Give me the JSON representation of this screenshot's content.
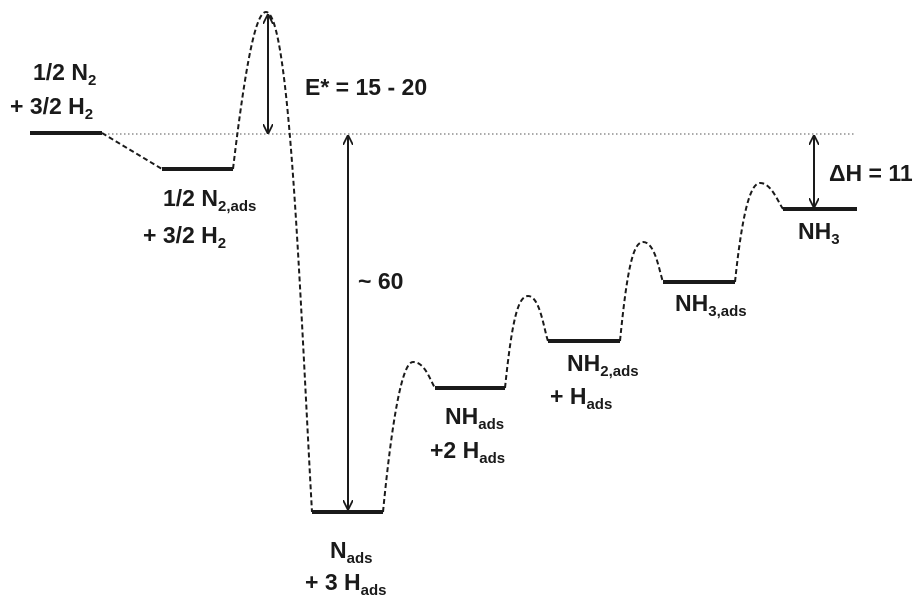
{
  "labels": {
    "reactants": {
      "l1_main": "1/2 N",
      "l1_sub": "2",
      "l2_main": "+ 3/2 H",
      "l2_sub": "2"
    },
    "n2_ads": {
      "l1_main": "1/2 N",
      "l1_sub": "2,ads",
      "l2_main": "+ 3/2 H",
      "l2_sub": "2"
    },
    "n_ads": {
      "l1_main": "N",
      "l1_sub": "ads",
      "l2_main": "+ 3 H",
      "l2_sub": "ads"
    },
    "nh_ads": {
      "l1_main": "NH",
      "l1_sub": "ads",
      "l2_main": "+2 H",
      "l2_sub": "ads"
    },
    "nh2_ads": {
      "l1_main": "NH",
      "l1_sub": "2,ads",
      "l2_main": "+ H",
      "l2_sub": "ads"
    },
    "nh3_ads": {
      "l1_main": "NH",
      "l1_sub": "3,ads"
    },
    "nh3": {
      "l1_main": "NH",
      "l1_sub": "3"
    }
  },
  "annotations": {
    "activation": "E* = 15 - 20",
    "well_depth": "~ 60",
    "enthalpy": "ΔH = 11"
  }
}
